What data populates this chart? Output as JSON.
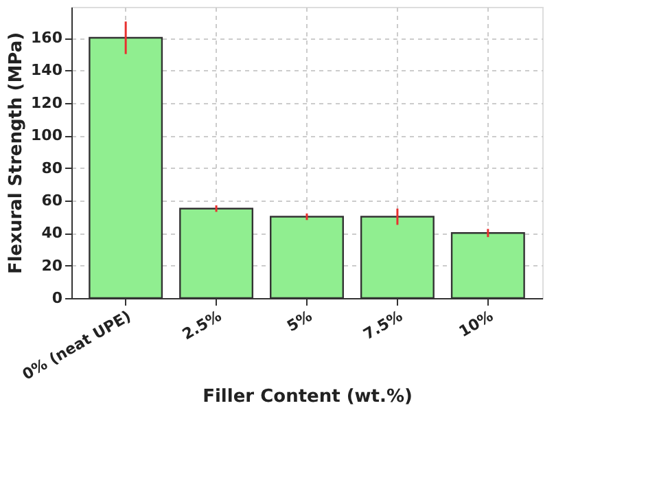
{
  "chart_data": {
    "type": "bar",
    "xlabel": "Filler Content (wt.%)",
    "ylabel": "Flexural Strength (MPa)",
    "categories": [
      "0% (neat UPE)",
      "2.5%",
      "5%",
      "7.5%",
      "10%"
    ],
    "values": [
      160,
      55,
      50,
      50,
      40
    ],
    "errors": [
      10,
      2,
      2,
      5,
      2.5
    ],
    "color": "#90ee90",
    "ylim": [
      0,
      179
    ],
    "yticks": [
      0,
      20,
      40,
      60,
      80,
      100,
      120,
      140,
      160
    ],
    "grid": true
  }
}
